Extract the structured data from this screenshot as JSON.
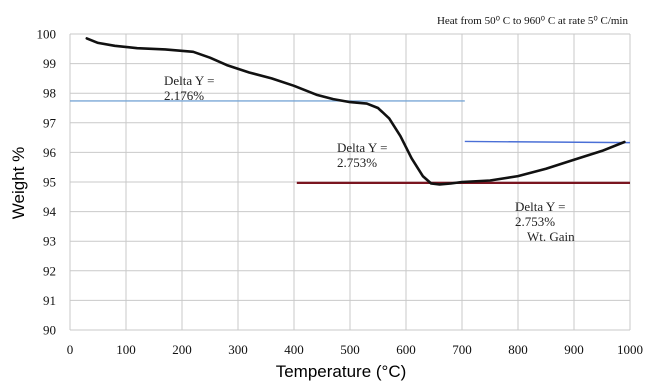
{
  "chart_data": {
    "type": "line",
    "title": "",
    "note": "Heat from 50⁰ C to 960⁰ C at rate 5⁰ C/min",
    "xlabel": "Temperature (°C)",
    "ylabel": "Weight %",
    "xlim": [
      0,
      1000
    ],
    "ylim": [
      90,
      100
    ],
    "x_ticks": [
      "0",
      "100",
      "200",
      "300",
      "400",
      "500",
      "600",
      "700",
      "800",
      "900",
      "1000"
    ],
    "y_ticks": [
      "90",
      "91",
      "92",
      "93",
      "94",
      "95",
      "96",
      "97",
      "98",
      "99",
      "100"
    ],
    "grid": true,
    "series": [
      {
        "color": "#111111",
        "x": [
          30,
          50,
          80,
          120,
          170,
          220,
          250,
          280,
          320,
          360,
          400,
          440,
          470,
          500,
          530,
          550,
          570,
          590,
          610,
          630,
          645,
          660,
          680,
          700,
          750,
          800,
          850,
          900,
          950,
          990
        ],
        "y": [
          99.85,
          99.7,
          99.6,
          99.52,
          99.48,
          99.4,
          99.2,
          98.95,
          98.7,
          98.5,
          98.25,
          97.95,
          97.8,
          97.7,
          97.65,
          97.5,
          97.15,
          96.55,
          95.8,
          95.2,
          94.95,
          94.92,
          94.95,
          95.0,
          95.05,
          95.2,
          95.45,
          95.75,
          96.05,
          96.35
        ]
      }
    ],
    "reference_lines": [
      {
        "color": "#7aa7d6",
        "x": [
          0,
          705
        ],
        "y": [
          97.74,
          97.74
        ]
      },
      {
        "color": "#7a1520",
        "x": [
          405,
          1000
        ],
        "y": [
          94.97,
          94.97
        ]
      },
      {
        "color": "#4a6fd6",
        "x": [
          705,
          1000
        ],
        "y": [
          96.37,
          96.33
        ]
      }
    ],
    "annotations": [
      {
        "lines": [
          "Delta  Y =",
          "2.176%"
        ]
      },
      {
        "lines": [
          "Delta  Y =",
          "2.753%"
        ]
      },
      {
        "lines": [
          "Delta  Y =",
          "2.753%",
          "Wt. Gain"
        ]
      }
    ]
  }
}
